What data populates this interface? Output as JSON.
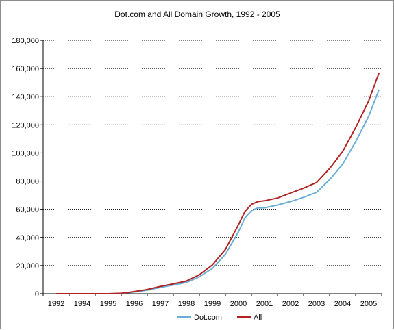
{
  "chart_data": {
    "type": "line",
    "title": "Dot.com and All Domain Growth, 1992 - 2005",
    "xlabel": "",
    "ylabel": "",
    "ylim": [
      0,
      180000
    ],
    "y_ticks": [
      0,
      20000,
      40000,
      60000,
      80000,
      100000,
      120000,
      140000,
      160000,
      180000
    ],
    "y_tick_labels": [
      "0",
      "20,000",
      "40,000",
      "60,000",
      "80,000",
      "100,000",
      "120,000",
      "140,000",
      "160,000",
      "180,000"
    ],
    "x_tick_labels": [
      "1992",
      "1994",
      "1995",
      "1996",
      "1997",
      "1998",
      "1999",
      "2000",
      "2001",
      "2002",
      "2003",
      "2004",
      "2005"
    ],
    "grid": "horizontal dotted",
    "legend": "bottom",
    "series": [
      {
        "name": "Dot.com",
        "color": "#6baed6",
        "points": [
          [
            0,
            0
          ],
          [
            1,
            0
          ],
          [
            2,
            0
          ],
          [
            2.5,
            200
          ],
          [
            3,
            1200
          ],
          [
            3.5,
            2500
          ],
          [
            4,
            4500
          ],
          [
            4.5,
            6200
          ],
          [
            5,
            8000
          ],
          [
            5.5,
            12000
          ],
          [
            6,
            18000
          ],
          [
            6.5,
            28000
          ],
          [
            7,
            44000
          ],
          [
            7.25,
            54000
          ],
          [
            7.5,
            59000
          ],
          [
            7.75,
            61000
          ],
          [
            8,
            61000
          ],
          [
            8.5,
            63000
          ],
          [
            9,
            65500
          ],
          [
            9.5,
            68500
          ],
          [
            10,
            72000
          ],
          [
            10.5,
            81000
          ],
          [
            11,
            92000
          ],
          [
            11.5,
            108000
          ],
          [
            12,
            126000
          ],
          [
            12.4,
            145000
          ]
        ]
      },
      {
        "name": "All",
        "color": "#b22222",
        "points": [
          [
            0,
            0
          ],
          [
            1,
            0
          ],
          [
            2,
            0
          ],
          [
            2.5,
            300
          ],
          [
            3,
            1500
          ],
          [
            3.5,
            3000
          ],
          [
            4,
            5200
          ],
          [
            4.5,
            7000
          ],
          [
            5,
            9000
          ],
          [
            5.5,
            13500
          ],
          [
            6,
            20500
          ],
          [
            6.5,
            31500
          ],
          [
            7,
            49000
          ],
          [
            7.25,
            58500
          ],
          [
            7.5,
            63500
          ],
          [
            7.75,
            65500
          ],
          [
            8,
            66000
          ],
          [
            8.5,
            68000
          ],
          [
            9,
            71500
          ],
          [
            9.5,
            75000
          ],
          [
            10,
            79000
          ],
          [
            10.5,
            89000
          ],
          [
            11,
            101000
          ],
          [
            11.5,
            118000
          ],
          [
            12,
            137000
          ],
          [
            12.4,
            157000
          ]
        ]
      }
    ]
  }
}
